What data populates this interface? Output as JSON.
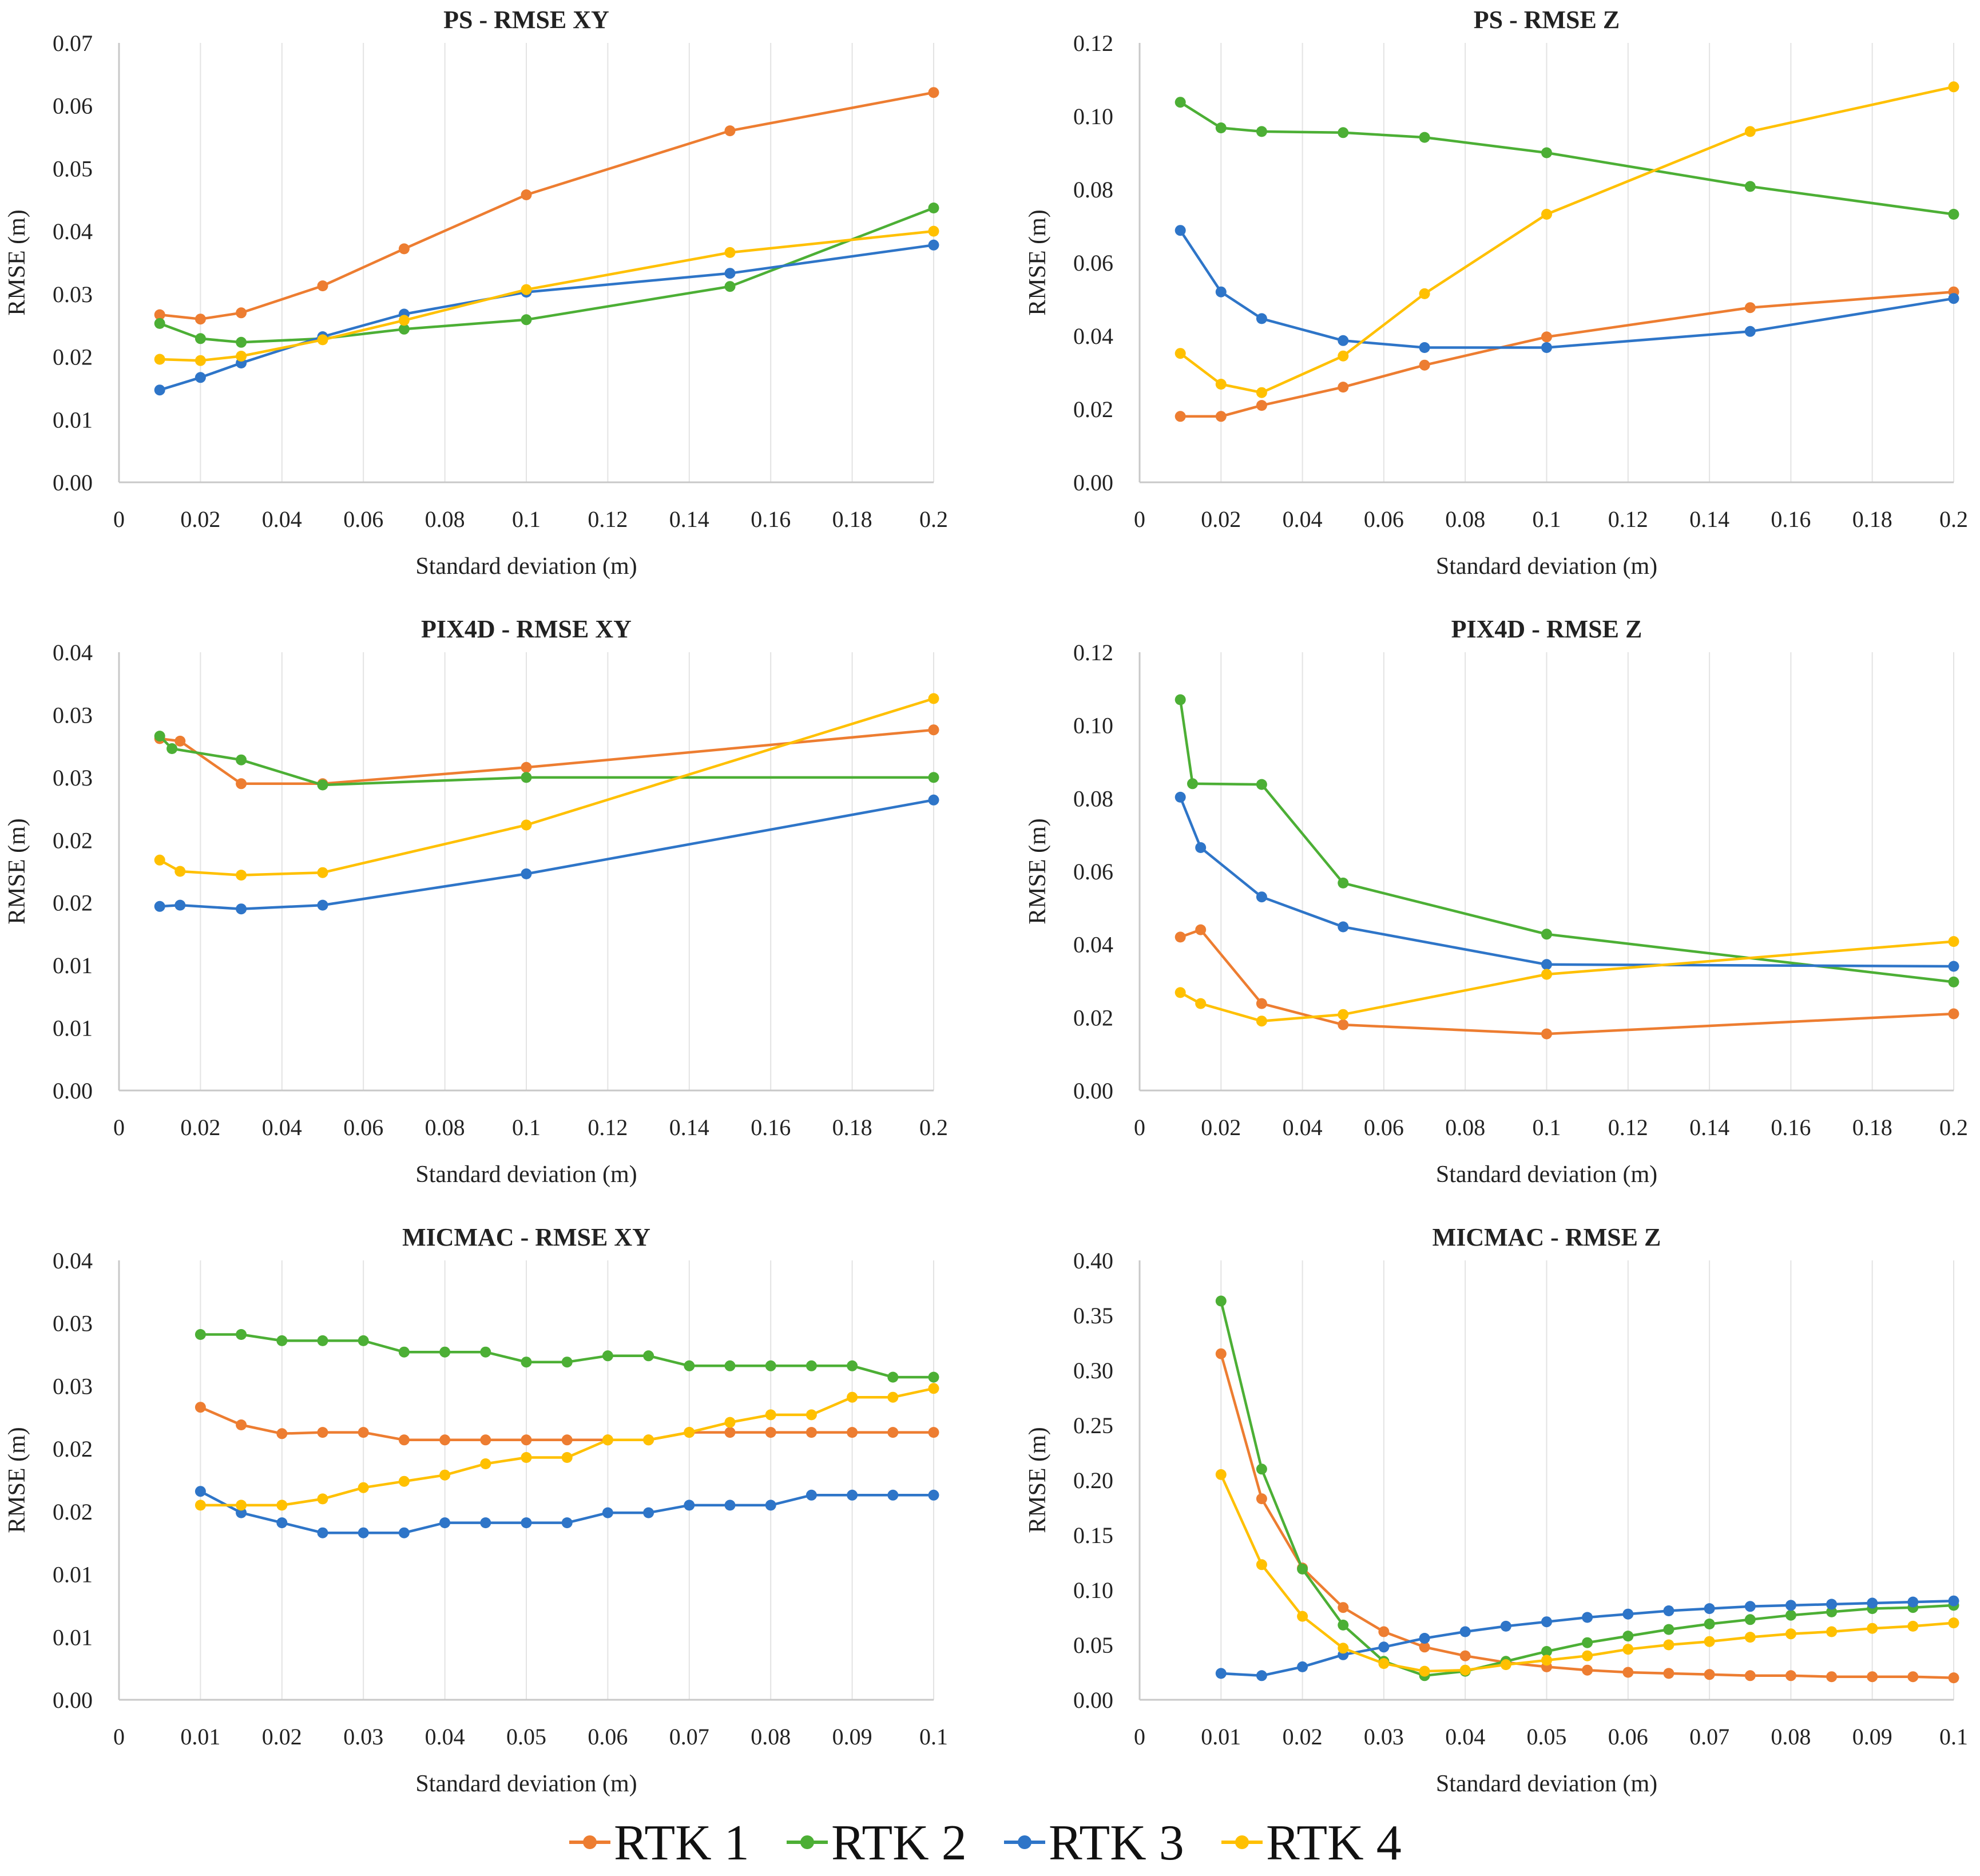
{
  "legend": [
    {
      "name": "RTK 1",
      "color": "#ED7D31"
    },
    {
      "name": "RTK 2",
      "color": "#4CAF35"
    },
    {
      "name": "RTK 3",
      "color": "#2E75C8"
    },
    {
      "name": "RTK 4",
      "color": "#FFC000"
    }
  ],
  "chart_data": [
    {
      "type": "line",
      "title": "PS - RMSE XY",
      "xlabel": "Standard deviation (m)",
      "ylabel": "RMSE (m)",
      "xlim": [
        0,
        0.2
      ],
      "ylim": [
        0,
        0.07
      ],
      "x_ticks": [
        0,
        0.02,
        0.04,
        0.06,
        0.08,
        0.1,
        0.12,
        0.14,
        0.16,
        0.18,
        0.2
      ],
      "x_tick_labels": [
        "0",
        "0.02",
        "0.04",
        "0.06",
        "0.08",
        "0.1",
        "0.12",
        "0.14",
        "0.16",
        "0.18",
        "0.2"
      ],
      "y_ticks": [
        0,
        0.01,
        0.02,
        0.03,
        0.04,
        0.05,
        0.06,
        0.07
      ],
      "y_tick_labels": [
        "0.00",
        "0.01",
        "0.02",
        "0.03",
        "0.04",
        "0.05",
        "0.06",
        "0.07"
      ],
      "grid": "vertical",
      "series": [
        {
          "name": "RTK 1",
          "x": [
            0.01,
            0.02,
            0.03,
            0.05,
            0.07,
            0.1,
            0.15,
            0.2
          ],
          "values": [
            0.0267,
            0.026,
            0.027,
            0.0313,
            0.0372,
            0.0458,
            0.056,
            0.0621
          ]
        },
        {
          "name": "RTK 2",
          "x": [
            0.01,
            0.02,
            0.03,
            0.05,
            0.07,
            0.1,
            0.15,
            0.2
          ],
          "values": [
            0.0253,
            0.0229,
            0.0223,
            0.0229,
            0.0244,
            0.0259,
            0.0312,
            0.0437
          ]
        },
        {
          "name": "RTK 3",
          "x": [
            0.01,
            0.02,
            0.03,
            0.05,
            0.07,
            0.1,
            0.15,
            0.2
          ],
          "values": [
            0.0147,
            0.0167,
            0.019,
            0.0232,
            0.0268,
            0.0303,
            0.0333,
            0.0378
          ]
        },
        {
          "name": "RTK 4",
          "x": [
            0.01,
            0.02,
            0.03,
            0.05,
            0.07,
            0.1,
            0.15,
            0.2
          ],
          "values": [
            0.0196,
            0.0194,
            0.0201,
            0.0227,
            0.0258,
            0.0307,
            0.0366,
            0.04
          ]
        }
      ]
    },
    {
      "type": "line",
      "title": "PS - RMSE Z",
      "xlabel": "Standard deviation (m)",
      "ylabel": "RMSE (m)",
      "xlim": [
        0,
        0.2
      ],
      "ylim": [
        0,
        0.12
      ],
      "x_ticks": [
        0,
        0.02,
        0.04,
        0.06,
        0.08,
        0.1,
        0.12,
        0.14,
        0.16,
        0.18,
        0.2
      ],
      "x_tick_labels": [
        "0",
        "0.02",
        "0.04",
        "0.06",
        "0.08",
        "0.1",
        "0.12",
        "0.14",
        "0.16",
        "0.18",
        "0.2"
      ],
      "y_ticks": [
        0,
        0.02,
        0.04,
        0.06,
        0.08,
        0.1,
        0.12
      ],
      "y_tick_labels": [
        "0.00",
        "0.02",
        "0.04",
        "0.06",
        "0.08",
        "0.10",
        "0.12"
      ],
      "grid": "vertical",
      "series": [
        {
          "name": "RTK 1",
          "x": [
            0.01,
            0.02,
            0.03,
            0.05,
            0.07,
            0.1,
            0.15,
            0.2
          ],
          "values": [
            0.018,
            0.018,
            0.021,
            0.026,
            0.032,
            0.0397,
            0.0477,
            0.052
          ]
        },
        {
          "name": "RTK 2",
          "x": [
            0.01,
            0.02,
            0.03,
            0.05,
            0.07,
            0.1,
            0.15,
            0.2
          ],
          "values": [
            0.1038,
            0.0968,
            0.0958,
            0.0955,
            0.0942,
            0.09,
            0.0808,
            0.0732
          ]
        },
        {
          "name": "RTK 3",
          "x": [
            0.01,
            0.02,
            0.03,
            0.05,
            0.07,
            0.1,
            0.15,
            0.2
          ],
          "values": [
            0.0688,
            0.052,
            0.0447,
            0.0387,
            0.0368,
            0.0368,
            0.0412,
            0.0502
          ]
        },
        {
          "name": "RTK 4",
          "x": [
            0.01,
            0.02,
            0.03,
            0.05,
            0.07,
            0.1,
            0.15,
            0.2
          ],
          "values": [
            0.0352,
            0.0268,
            0.0245,
            0.0345,
            0.0515,
            0.0732,
            0.0958,
            0.108
          ]
        }
      ]
    },
    {
      "type": "line",
      "title": "PIX4D - RMSE XY",
      "xlabel": "Standard deviation (m)",
      "ylabel": "RMSE (m)",
      "xlim": [
        0,
        0.2
      ],
      "ylim": [
        0,
        0.035
      ],
      "x_ticks": [
        0,
        0.02,
        0.04,
        0.06,
        0.08,
        0.1,
        0.12,
        0.14,
        0.16,
        0.18,
        0.2
      ],
      "x_tick_labels": [
        "0",
        "0.02",
        "0.04",
        "0.06",
        "0.08",
        "0.1",
        "0.12",
        "0.14",
        "0.16",
        "0.18",
        "0.2"
      ],
      "y_ticks": [
        0,
        0.005,
        0.01,
        0.015,
        0.02,
        0.025,
        0.03,
        0.035
      ],
      "y_tick_labels": [
        "0.00",
        "0.01",
        "0.01",
        "0.02",
        "0.02",
        "0.03",
        "0.03",
        "0.04"
      ],
      "grid": "vertical",
      "series": [
        {
          "name": "RTK 1",
          "x": [
            0.01,
            0.015,
            0.03,
            0.05,
            0.1,
            0.2
          ],
          "values": [
            0.0281,
            0.0279,
            0.0245,
            0.0245,
            0.0258,
            0.0288
          ]
        },
        {
          "name": "RTK 2",
          "x": [
            0.01,
            0.013,
            0.03,
            0.05,
            0.1,
            0.2
          ],
          "values": [
            0.0283,
            0.0273,
            0.0264,
            0.0244,
            0.025,
            0.025
          ]
        },
        {
          "name": "RTK 3",
          "x": [
            0.01,
            0.015,
            0.03,
            0.05,
            0.1,
            0.2
          ],
          "values": [
            0.0147,
            0.0148,
            0.0145,
            0.0148,
            0.0173,
            0.0232
          ]
        },
        {
          "name": "RTK 4",
          "x": [
            0.01,
            0.015,
            0.03,
            0.05,
            0.1,
            0.2
          ],
          "values": [
            0.0184,
            0.0175,
            0.0172,
            0.0174,
            0.0212,
            0.0313
          ]
        }
      ]
    },
    {
      "type": "line",
      "title": "PIX4D - RMSE Z",
      "xlabel": "Standard deviation (m)",
      "ylabel": "RMSE (m)",
      "xlim": [
        0,
        0.2
      ],
      "ylim": [
        0,
        0.12
      ],
      "x_ticks": [
        0,
        0.02,
        0.04,
        0.06,
        0.08,
        0.1,
        0.12,
        0.14,
        0.16,
        0.18,
        0.2
      ],
      "x_tick_labels": [
        "0",
        "0.02",
        "0.04",
        "0.06",
        "0.08",
        "0.1",
        "0.12",
        "0.14",
        "0.16",
        "0.18",
        "0.2"
      ],
      "y_ticks": [
        0,
        0.02,
        0.04,
        0.06,
        0.08,
        0.1,
        0.12
      ],
      "y_tick_labels": [
        "0.00",
        "0.02",
        "0.04",
        "0.06",
        "0.08",
        "0.10",
        "0.12"
      ],
      "grid": "vertical",
      "series": [
        {
          "name": "RTK 1",
          "x": [
            0.01,
            0.015,
            0.03,
            0.05,
            0.1,
            0.2
          ],
          "values": [
            0.042,
            0.044,
            0.0238,
            0.018,
            0.0155,
            0.021
          ]
        },
        {
          "name": "RTK 2",
          "x": [
            0.01,
            0.013,
            0.03,
            0.05,
            0.1,
            0.2
          ],
          "values": [
            0.107,
            0.084,
            0.0838,
            0.0568,
            0.0428,
            0.0297
          ]
        },
        {
          "name": "RTK 3",
          "x": [
            0.01,
            0.015,
            0.03,
            0.05,
            0.1,
            0.2
          ],
          "values": [
            0.0803,
            0.0665,
            0.053,
            0.0448,
            0.0345,
            0.034
          ]
        },
        {
          "name": "RTK 4",
          "x": [
            0.01,
            0.015,
            0.03,
            0.05,
            0.1,
            0.2
          ],
          "values": [
            0.0268,
            0.0238,
            0.019,
            0.0208,
            0.0318,
            0.0408
          ]
        }
      ]
    },
    {
      "type": "line",
      "title": "MICMAC - RMSE XY",
      "xlabel": "Standard deviation (m)",
      "ylabel": "RMSE (m)",
      "xlim": [
        0,
        0.1
      ],
      "ylim": [
        0,
        0.035
      ],
      "x_ticks": [
        0,
        0.01,
        0.02,
        0.03,
        0.04,
        0.05,
        0.06,
        0.07,
        0.08,
        0.09,
        0.1
      ],
      "x_tick_labels": [
        "0",
        "0.01",
        "0.02",
        "0.03",
        "0.04",
        "0.05",
        "0.06",
        "0.07",
        "0.08",
        "0.09",
        "0.1"
      ],
      "y_ticks": [
        0,
        0.005,
        0.01,
        0.015,
        0.02,
        0.025,
        0.03,
        0.035
      ],
      "y_tick_labels": [
        "0.00",
        "0.01",
        "0.01",
        "0.02",
        "0.02",
        "0.03",
        "0.03",
        "0.04"
      ],
      "grid": "vertical",
      "series": [
        {
          "name": "RTK 1",
          "x": [
            0.01,
            0.015,
            0.02,
            0.025,
            0.03,
            0.035,
            0.04,
            0.045,
            0.05,
            0.055,
            0.06,
            0.065,
            0.07,
            0.075,
            0.08,
            0.085,
            0.09,
            0.095,
            0.1
          ],
          "values": [
            0.0233,
            0.0219,
            0.0212,
            0.0213,
            0.0213,
            0.0207,
            0.0207,
            0.0207,
            0.0207,
            0.0207,
            0.0207,
            0.0207,
            0.0213,
            0.0213,
            0.0213,
            0.0213,
            0.0213,
            0.0213,
            0.0213
          ]
        },
        {
          "name": "RTK 2",
          "x": [
            0.01,
            0.015,
            0.02,
            0.025,
            0.03,
            0.035,
            0.04,
            0.045,
            0.05,
            0.055,
            0.06,
            0.065,
            0.07,
            0.075,
            0.08,
            0.085,
            0.09,
            0.095,
            0.1
          ],
          "values": [
            0.0291,
            0.0291,
            0.0286,
            0.0286,
            0.0286,
            0.0277,
            0.0277,
            0.0277,
            0.0269,
            0.0269,
            0.0274,
            0.0274,
            0.0266,
            0.0266,
            0.0266,
            0.0266,
            0.0266,
            0.0257,
            0.0257
          ]
        },
        {
          "name": "RTK 3",
          "x": [
            0.01,
            0.015,
            0.02,
            0.025,
            0.03,
            0.035,
            0.04,
            0.045,
            0.05,
            0.055,
            0.06,
            0.065,
            0.07,
            0.075,
            0.08,
            0.085,
            0.09,
            0.095,
            0.1
          ],
          "values": [
            0.0166,
            0.0149,
            0.0141,
            0.0133,
            0.0133,
            0.0133,
            0.0141,
            0.0141,
            0.0141,
            0.0141,
            0.0149,
            0.0149,
            0.0155,
            0.0155,
            0.0155,
            0.0163,
            0.0163,
            0.0163,
            0.0163
          ]
        },
        {
          "name": "RTK 4",
          "x": [
            0.01,
            0.015,
            0.02,
            0.025,
            0.03,
            0.035,
            0.04,
            0.045,
            0.05,
            0.055,
            0.06,
            0.065,
            0.07,
            0.075,
            0.08,
            0.085,
            0.09,
            0.095,
            0.1
          ],
          "values": [
            0.0155,
            0.0155,
            0.0155,
            0.016,
            0.0169,
            0.0174,
            0.0179,
            0.0188,
            0.0193,
            0.0193,
            0.0207,
            0.0207,
            0.0213,
            0.0221,
            0.0227,
            0.0227,
            0.0241,
            0.0241,
            0.0248
          ]
        }
      ]
    },
    {
      "type": "line",
      "title": "MICMAC - RMSE Z",
      "xlabel": "Standard deviation (m)",
      "ylabel": "RMSE (m)",
      "xlim": [
        0,
        0.1
      ],
      "ylim": [
        0,
        0.4
      ],
      "x_ticks": [
        0,
        0.01,
        0.02,
        0.03,
        0.04,
        0.05,
        0.06,
        0.07,
        0.08,
        0.09,
        0.1
      ],
      "x_tick_labels": [
        "0",
        "0.01",
        "0.02",
        "0.03",
        "0.04",
        "0.05",
        "0.06",
        "0.07",
        "0.08",
        "0.09",
        "0.1"
      ],
      "y_ticks": [
        0,
        0.05,
        0.1,
        0.15,
        0.2,
        0.25,
        0.3,
        0.35,
        0.4
      ],
      "y_tick_labels": [
        "0.00",
        "0.05",
        "0.10",
        "0.15",
        "0.20",
        "0.25",
        "0.30",
        "0.35",
        "0.40"
      ],
      "grid": "vertical",
      "series": [
        {
          "name": "RTK 1",
          "x": [
            0.01,
            0.015,
            0.02,
            0.025,
            0.03,
            0.035,
            0.04,
            0.045,
            0.05,
            0.055,
            0.06,
            0.065,
            0.07,
            0.075,
            0.08,
            0.085,
            0.09,
            0.095,
            0.1
          ],
          "values": [
            0.315,
            0.183,
            0.12,
            0.084,
            0.062,
            0.048,
            0.04,
            0.034,
            0.03,
            0.027,
            0.025,
            0.024,
            0.023,
            0.022,
            0.022,
            0.021,
            0.021,
            0.021,
            0.02
          ]
        },
        {
          "name": "RTK 2",
          "x": [
            0.01,
            0.015,
            0.02,
            0.025,
            0.03,
            0.035,
            0.04,
            0.045,
            0.05,
            0.055,
            0.06,
            0.065,
            0.07,
            0.075,
            0.08,
            0.085,
            0.09,
            0.095,
            0.1
          ],
          "values": [
            0.363,
            0.21,
            0.119,
            0.068,
            0.035,
            0.022,
            0.026,
            0.035,
            0.044,
            0.052,
            0.058,
            0.064,
            0.069,
            0.073,
            0.077,
            0.08,
            0.083,
            0.084,
            0.086
          ]
        },
        {
          "name": "RTK 3",
          "x": [
            0.01,
            0.015,
            0.02,
            0.025,
            0.03,
            0.035,
            0.04,
            0.045,
            0.05,
            0.055,
            0.06,
            0.065,
            0.07,
            0.075,
            0.08,
            0.085,
            0.09,
            0.095,
            0.1
          ],
          "values": [
            0.024,
            0.022,
            0.03,
            0.041,
            0.048,
            0.056,
            0.062,
            0.067,
            0.071,
            0.075,
            0.078,
            0.081,
            0.083,
            0.085,
            0.086,
            0.087,
            0.088,
            0.089,
            0.09
          ]
        },
        {
          "name": "RTK 4",
          "x": [
            0.01,
            0.015,
            0.02,
            0.025,
            0.03,
            0.035,
            0.04,
            0.045,
            0.05,
            0.055,
            0.06,
            0.065,
            0.07,
            0.075,
            0.08,
            0.085,
            0.09,
            0.095,
            0.1
          ],
          "values": [
            0.205,
            0.123,
            0.076,
            0.047,
            0.033,
            0.026,
            0.027,
            0.032,
            0.036,
            0.04,
            0.046,
            0.05,
            0.053,
            0.057,
            0.06,
            0.062,
            0.065,
            0.067,
            0.07
          ]
        }
      ]
    }
  ]
}
